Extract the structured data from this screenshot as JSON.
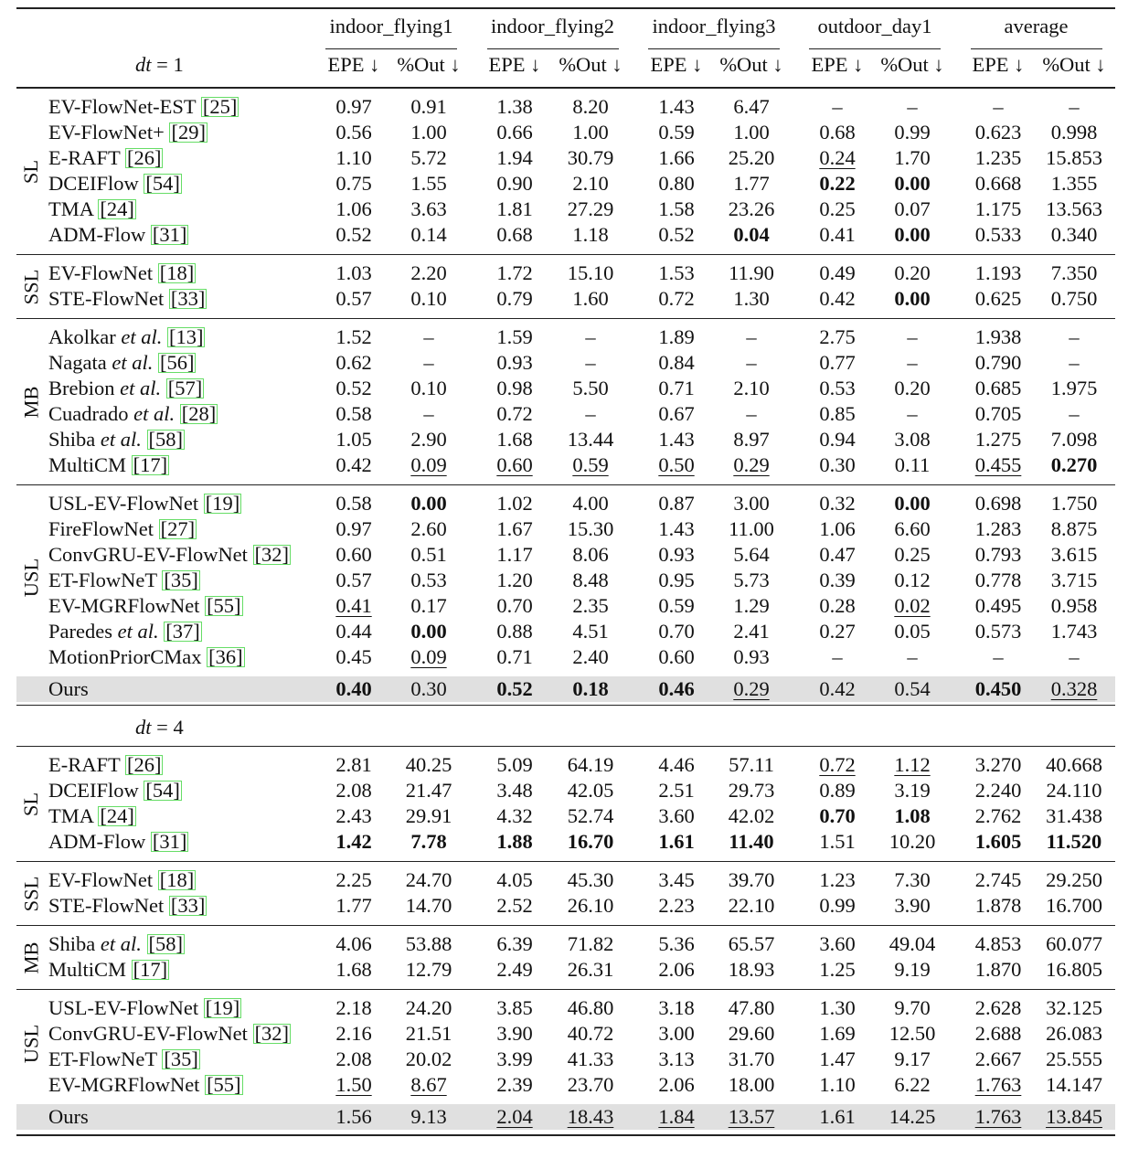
{
  "header": {
    "datasets": [
      "indoor_flying1",
      "indoor_flying2",
      "indoor_flying3",
      "outdoor_day1",
      "average"
    ],
    "metrics": [
      "EPE ↓",
      "%Out ↓",
      "EPE ↓",
      "%Out ↓",
      "EPE ↓",
      "%Out ↓",
      "EPE ↓",
      "%Out ↓",
      "EPE ↓",
      "%Out ↓"
    ]
  },
  "sections": [
    {
      "dt_var": "dt",
      "dt_value": "= 1",
      "groups": [
        {
          "label": "SL",
          "rows": [
            {
              "name": "EV-FlowNet-EST",
              "etal": "",
              "cite": "[25]",
              "cells": [
                "0.97",
                "0.91",
                "1.38",
                "8.20",
                "1.43",
                "6.47",
                "–",
                "–",
                "–",
                "–"
              ],
              "bold": [],
              "underline": []
            },
            {
              "name": "EV-FlowNet+",
              "etal": "",
              "cite": "[29]",
              "cells": [
                "0.56",
                "1.00",
                "0.66",
                "1.00",
                "0.59",
                "1.00",
                "0.68",
                "0.99",
                "0.623",
                "0.998"
              ],
              "bold": [],
              "underline": []
            },
            {
              "name": "E-RAFT",
              "etal": "",
              "cite": "[26]",
              "cells": [
                "1.10",
                "5.72",
                "1.94",
                "30.79",
                "1.66",
                "25.20",
                "0.24",
                "1.70",
                "1.235",
                "15.853"
              ],
              "bold": [],
              "underline": [
                6
              ]
            },
            {
              "name": "DCEIFlow",
              "etal": "",
              "cite": "[54]",
              "cells": [
                "0.75",
                "1.55",
                "0.90",
                "2.10",
                "0.80",
                "1.77",
                "0.22",
                "0.00",
                "0.668",
                "1.355"
              ],
              "bold": [
                6,
                7
              ],
              "underline": []
            },
            {
              "name": "TMA",
              "etal": "",
              "cite": "[24]",
              "cells": [
                "1.06",
                "3.63",
                "1.81",
                "27.29",
                "1.58",
                "23.26",
                "0.25",
                "0.07",
                "1.175",
                "13.563"
              ],
              "bold": [],
              "underline": []
            },
            {
              "name": "ADM-Flow",
              "etal": "",
              "cite": "[31]",
              "cells": [
                "0.52",
                "0.14",
                "0.68",
                "1.18",
                "0.52",
                "0.04",
                "0.41",
                "0.00",
                "0.533",
                "0.340"
              ],
              "bold": [
                5,
                7
              ],
              "underline": []
            }
          ]
        },
        {
          "label": "SSL",
          "rows": [
            {
              "name": "EV-FlowNet",
              "etal": "",
              "cite": "[18]",
              "cells": [
                "1.03",
                "2.20",
                "1.72",
                "15.10",
                "1.53",
                "11.90",
                "0.49",
                "0.20",
                "1.193",
                "7.350"
              ],
              "bold": [],
              "underline": []
            },
            {
              "name": "STE-FlowNet",
              "etal": "",
              "cite": "[33]",
              "cells": [
                "0.57",
                "0.10",
                "0.79",
                "1.60",
                "0.72",
                "1.30",
                "0.42",
                "0.00",
                "0.625",
                "0.750"
              ],
              "bold": [
                7
              ],
              "underline": []
            }
          ]
        },
        {
          "label": "MB",
          "rows": [
            {
              "name": "Akolkar",
              "etal": "et al.",
              "cite": "[13]",
              "cells": [
                "1.52",
                "–",
                "1.59",
                "–",
                "1.89",
                "–",
                "2.75",
                "–",
                "1.938",
                "–"
              ],
              "bold": [],
              "underline": []
            },
            {
              "name": "Nagata",
              "etal": "et al.",
              "cite": "[56]",
              "cells": [
                "0.62",
                "–",
                "0.93",
                "–",
                "0.84",
                "–",
                "0.77",
                "–",
                "0.790",
                "–"
              ],
              "bold": [],
              "underline": []
            },
            {
              "name": "Brebion",
              "etal": "et al.",
              "cite": "[57]",
              "cells": [
                "0.52",
                "0.10",
                "0.98",
                "5.50",
                "0.71",
                "2.10",
                "0.53",
                "0.20",
                "0.685",
                "1.975"
              ],
              "bold": [],
              "underline": []
            },
            {
              "name": "Cuadrado",
              "etal": "et al.",
              "cite": "[28]",
              "cells": [
                "0.58",
                "–",
                "0.72",
                "–",
                "0.67",
                "–",
                "0.85",
                "–",
                "0.705",
                "–"
              ],
              "bold": [],
              "underline": []
            },
            {
              "name": "Shiba",
              "etal": "et al.",
              "cite": "[58]",
              "cells": [
                "1.05",
                "2.90",
                "1.68",
                "13.44",
                "1.43",
                "8.97",
                "0.94",
                "3.08",
                "1.275",
                "7.098"
              ],
              "bold": [],
              "underline": []
            },
            {
              "name": "MultiCM",
              "etal": "",
              "cite": "[17]",
              "cells": [
                "0.42",
                "0.09",
                "0.60",
                "0.59",
                "0.50",
                "0.29",
                "0.30",
                "0.11",
                "0.455",
                "0.270"
              ],
              "bold": [
                9
              ],
              "underline": [
                1,
                2,
                3,
                4,
                5,
                8
              ]
            }
          ]
        },
        {
          "label": "USL",
          "rows": [
            {
              "name": "USL-EV-FlowNet",
              "etal": "",
              "cite": "[19]",
              "cells": [
                "0.58",
                "0.00",
                "1.02",
                "4.00",
                "0.87",
                "3.00",
                "0.32",
                "0.00",
                "0.698",
                "1.750"
              ],
              "bold": [
                1,
                7
              ],
              "underline": []
            },
            {
              "name": "FireFlowNet",
              "etal": "",
              "cite": "[27]",
              "cells": [
                "0.97",
                "2.60",
                "1.67",
                "15.30",
                "1.43",
                "11.00",
                "1.06",
                "6.60",
                "1.283",
                "8.875"
              ],
              "bold": [],
              "underline": []
            },
            {
              "name": "ConvGRU-EV-FlowNet",
              "etal": "",
              "cite": "[32]",
              "cells": [
                "0.60",
                "0.51",
                "1.17",
                "8.06",
                "0.93",
                "5.64",
                "0.47",
                "0.25",
                "0.793",
                "3.615"
              ],
              "bold": [],
              "underline": []
            },
            {
              "name": "ET-FlowNeT",
              "etal": "",
              "cite": "[35]",
              "cells": [
                "0.57",
                "0.53",
                "1.20",
                "8.48",
                "0.95",
                "5.73",
                "0.39",
                "0.12",
                "0.778",
                "3.715"
              ],
              "bold": [],
              "underline": []
            },
            {
              "name": "EV-MGRFlowNet",
              "etal": "",
              "cite": "[55]",
              "cells": [
                "0.41",
                "0.17",
                "0.70",
                "2.35",
                "0.59",
                "1.29",
                "0.28",
                "0.02",
                "0.495",
                "0.958"
              ],
              "bold": [],
              "underline": [
                0,
                7
              ]
            },
            {
              "name": "Paredes",
              "etal": "et al.",
              "cite": "[37]",
              "cells": [
                "0.44",
                "0.00",
                "0.88",
                "4.51",
                "0.70",
                "2.41",
                "0.27",
                "0.05",
                "0.573",
                "1.743"
              ],
              "bold": [
                1
              ],
              "underline": []
            },
            {
              "name": "MotionPriorCMax",
              "etal": "",
              "cite": "[36]",
              "cells": [
                "0.45",
                "0.09",
                "0.71",
                "2.40",
                "0.60",
                "0.93",
                "–",
                "–",
                "–",
                "–"
              ],
              "bold": [],
              "underline": [
                1
              ]
            }
          ]
        }
      ],
      "ours": {
        "name": "Ours",
        "cells": [
          "0.40",
          "0.30",
          "0.52",
          "0.18",
          "0.46",
          "0.29",
          "0.42",
          "0.54",
          "0.450",
          "0.328"
        ],
        "bold": [
          0,
          2,
          3,
          4,
          8
        ],
        "underline": [
          5,
          9
        ]
      }
    },
    {
      "dt_var": "dt",
      "dt_value": "= 4",
      "groups": [
        {
          "label": "SL",
          "rows": [
            {
              "name": "E-RAFT",
              "etal": "",
              "cite": "[26]",
              "cells": [
                "2.81",
                "40.25",
                "5.09",
                "64.19",
                "4.46",
                "57.11",
                "0.72",
                "1.12",
                "3.270",
                "40.668"
              ],
              "bold": [],
              "underline": [
                6,
                7
              ]
            },
            {
              "name": "DCEIFlow",
              "etal": "",
              "cite": "[54]",
              "cells": [
                "2.08",
                "21.47",
                "3.48",
                "42.05",
                "2.51",
                "29.73",
                "0.89",
                "3.19",
                "2.240",
                "24.110"
              ],
              "bold": [],
              "underline": []
            },
            {
              "name": "TMA",
              "etal": "",
              "cite": "[24]",
              "cells": [
                "2.43",
                "29.91",
                "4.32",
                "52.74",
                "3.60",
                "42.02",
                "0.70",
                "1.08",
                "2.762",
                "31.438"
              ],
              "bold": [
                6,
                7
              ],
              "underline": []
            },
            {
              "name": "ADM-Flow",
              "etal": "",
              "cite": "[31]",
              "cells": [
                "1.42",
                "7.78",
                "1.88",
                "16.70",
                "1.61",
                "11.40",
                "1.51",
                "10.20",
                "1.605",
                "11.520"
              ],
              "bold": [
                0,
                1,
                2,
                3,
                4,
                5,
                8,
                9
              ],
              "underline": []
            }
          ]
        },
        {
          "label": "SSL",
          "rows": [
            {
              "name": "EV-FlowNet",
              "etal": "",
              "cite": "[18]",
              "cells": [
                "2.25",
                "24.70",
                "4.05",
                "45.30",
                "3.45",
                "39.70",
                "1.23",
                "7.30",
                "2.745",
                "29.250"
              ],
              "bold": [],
              "underline": []
            },
            {
              "name": "STE-FlowNet",
              "etal": "",
              "cite": "[33]",
              "cells": [
                "1.77",
                "14.70",
                "2.52",
                "26.10",
                "2.23",
                "22.10",
                "0.99",
                "3.90",
                "1.878",
                "16.700"
              ],
              "bold": [],
              "underline": []
            }
          ]
        },
        {
          "label": "MB",
          "rows": [
            {
              "name": "Shiba",
              "etal": "et al.",
              "cite": "[58]",
              "cells": [
                "4.06",
                "53.88",
                "6.39",
                "71.82",
                "5.36",
                "65.57",
                "3.60",
                "49.04",
                "4.853",
                "60.077"
              ],
              "bold": [],
              "underline": []
            },
            {
              "name": "MultiCM",
              "etal": "",
              "cite": "[17]",
              "cells": [
                "1.68",
                "12.79",
                "2.49",
                "26.31",
                "2.06",
                "18.93",
                "1.25",
                "9.19",
                "1.870",
                "16.805"
              ],
              "bold": [],
              "underline": []
            }
          ]
        },
        {
          "label": "USL",
          "rows": [
            {
              "name": "USL-EV-FlowNet",
              "etal": "",
              "cite": "[19]",
              "cells": [
                "2.18",
                "24.20",
                "3.85",
                "46.80",
                "3.18",
                "47.80",
                "1.30",
                "9.70",
                "2.628",
                "32.125"
              ],
              "bold": [],
              "underline": []
            },
            {
              "name": "ConvGRU-EV-FlowNet",
              "etal": "",
              "cite": "[32]",
              "cells": [
                "2.16",
                "21.51",
                "3.90",
                "40.72",
                "3.00",
                "29.60",
                "1.69",
                "12.50",
                "2.688",
                "26.083"
              ],
              "bold": [],
              "underline": []
            },
            {
              "name": "ET-FlowNeT",
              "etal": "",
              "cite": "[35]",
              "cells": [
                "2.08",
                "20.02",
                "3.99",
                "41.33",
                "3.13",
                "31.70",
                "1.47",
                "9.17",
                "2.667",
                "25.555"
              ],
              "bold": [],
              "underline": []
            },
            {
              "name": "EV-MGRFlowNet",
              "etal": "",
              "cite": "[55]",
              "cells": [
                "1.50",
                "8.67",
                "2.39",
                "23.70",
                "2.06",
                "18.00",
                "1.10",
                "6.22",
                "1.763",
                "14.147"
              ],
              "bold": [],
              "underline": [
                0,
                1,
                8
              ]
            }
          ]
        }
      ],
      "ours": {
        "name": "Ours",
        "cells": [
          "1.56",
          "9.13",
          "2.04",
          "18.43",
          "1.84",
          "13.57",
          "1.61",
          "14.25",
          "1.763",
          "13.845"
        ],
        "bold": [],
        "underline": [
          2,
          3,
          4,
          5,
          8,
          9
        ]
      }
    }
  ]
}
